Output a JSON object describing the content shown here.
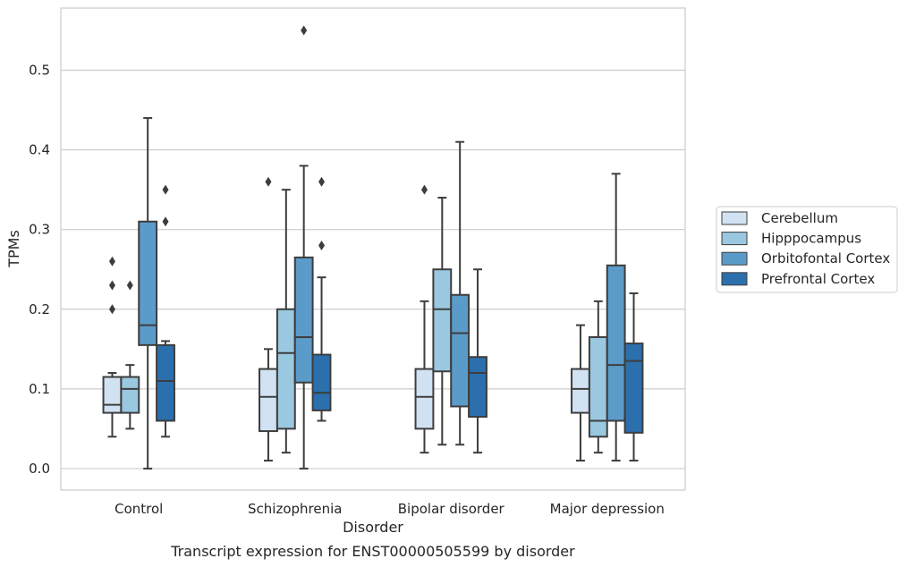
{
  "chart_data": {
    "type": "box",
    "title": "",
    "caption": "Transcript expression for ENST00000505599 by disorder",
    "xlabel": "Disorder",
    "ylabel": "TPMs",
    "ylim": [
      -0.027,
      0.578
    ],
    "yticks": [
      "0.0",
      "0.1",
      "0.2",
      "0.3",
      "0.4",
      "0.5"
    ],
    "grid": "horizontal",
    "legend_position": "right",
    "categories": [
      "Control",
      "Schizophrenia",
      "Bipolar disorder",
      "Major depression"
    ],
    "series": [
      {
        "name": "Cerebellum",
        "color": "#d1e2f3",
        "boxes": [
          {
            "whislo": 0.04,
            "q1": 0.07,
            "med": 0.08,
            "q3": 0.115,
            "whishi": 0.12,
            "fliers": [
              0.2,
              0.23,
              0.26
            ]
          },
          {
            "whislo": 0.01,
            "q1": 0.047,
            "med": 0.09,
            "q3": 0.125,
            "whishi": 0.15,
            "fliers": [
              0.36
            ]
          },
          {
            "whislo": 0.02,
            "q1": 0.05,
            "med": 0.09,
            "q3": 0.125,
            "whishi": 0.21,
            "fliers": [
              0.35
            ]
          },
          {
            "whislo": 0.01,
            "q1": 0.07,
            "med": 0.1,
            "q3": 0.125,
            "whishi": 0.18,
            "fliers": []
          }
        ]
      },
      {
        "name": "Hipppocampus",
        "color": "#9ac8e0",
        "boxes": [
          {
            "whislo": 0.05,
            "q1": 0.07,
            "med": 0.1,
            "q3": 0.115,
            "whishi": 0.13,
            "fliers": [
              0.23
            ]
          },
          {
            "whislo": 0.02,
            "q1": 0.05,
            "med": 0.145,
            "q3": 0.2,
            "whishi": 0.35,
            "fliers": []
          },
          {
            "whislo": 0.03,
            "q1": 0.122,
            "med": 0.2,
            "q3": 0.25,
            "whishi": 0.34,
            "fliers": []
          },
          {
            "whislo": 0.02,
            "q1": 0.04,
            "med": 0.06,
            "q3": 0.165,
            "whishi": 0.21,
            "fliers": []
          }
        ]
      },
      {
        "name": "Orbitofontal Cortex",
        "color": "#5b9bc9",
        "boxes": [
          {
            "whislo": 0.0,
            "q1": 0.155,
            "med": 0.18,
            "q3": 0.31,
            "whishi": 0.44,
            "fliers": []
          },
          {
            "whislo": 0.0,
            "q1": 0.108,
            "med": 0.165,
            "q3": 0.265,
            "whishi": 0.38,
            "fliers": [
              0.55
            ]
          },
          {
            "whislo": 0.03,
            "q1": 0.078,
            "med": 0.17,
            "q3": 0.218,
            "whishi": 0.41,
            "fliers": []
          },
          {
            "whislo": 0.01,
            "q1": 0.06,
            "med": 0.13,
            "q3": 0.255,
            "whishi": 0.37,
            "fliers": []
          }
        ]
      },
      {
        "name": "Prefrontal Cortex",
        "color": "#2c6fad",
        "boxes": [
          {
            "whislo": 0.04,
            "q1": 0.06,
            "med": 0.11,
            "q3": 0.155,
            "whishi": 0.16,
            "fliers": [
              0.31,
              0.35
            ]
          },
          {
            "whislo": 0.06,
            "q1": 0.073,
            "med": 0.095,
            "q3": 0.143,
            "whishi": 0.24,
            "fliers": [
              0.28,
              0.36
            ]
          },
          {
            "whislo": 0.02,
            "q1": 0.065,
            "med": 0.12,
            "q3": 0.14,
            "whishi": 0.25,
            "fliers": []
          },
          {
            "whislo": 0.01,
            "q1": 0.045,
            "med": 0.135,
            "q3": 0.157,
            "whishi": 0.22,
            "fliers": []
          }
        ]
      }
    ]
  }
}
